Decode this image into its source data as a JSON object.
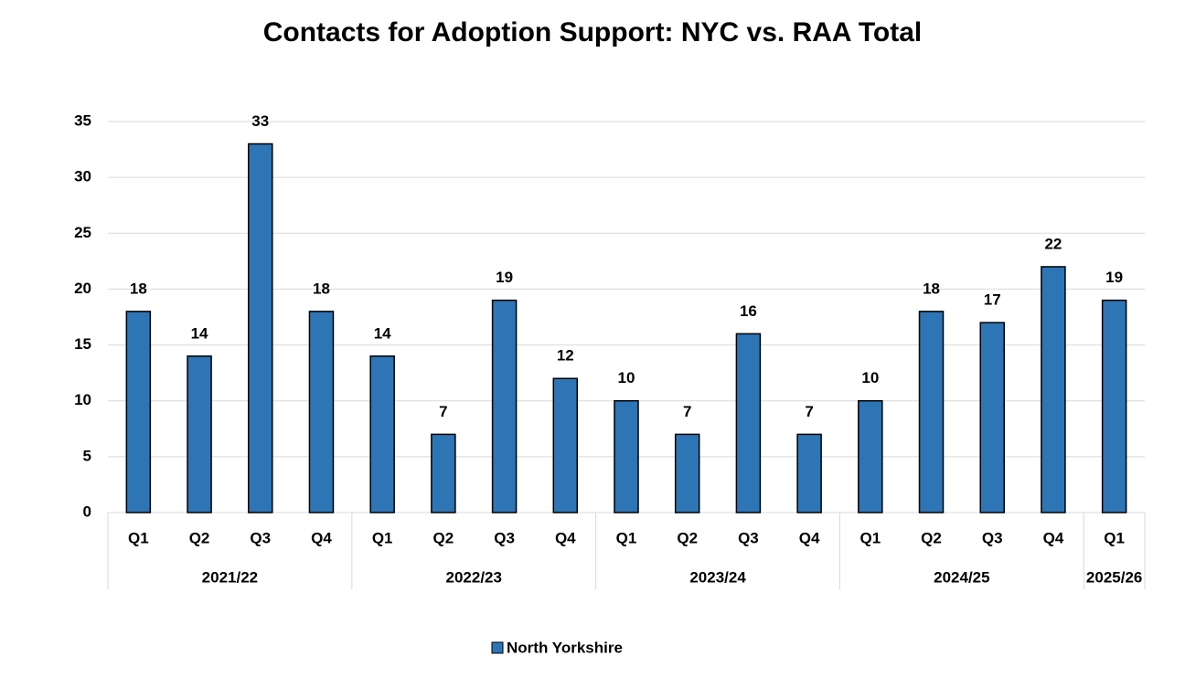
{
  "chart_data": {
    "type": "bar",
    "title": "Contacts for Adoption Support: NYC vs. RAA Total",
    "categories": [
      "Q1",
      "Q2",
      "Q3",
      "Q4",
      "Q1",
      "Q2",
      "Q3",
      "Q4",
      "Q1",
      "Q2",
      "Q3",
      "Q4",
      "Q1",
      "Q2",
      "Q3",
      "Q4",
      "Q1"
    ],
    "category_groups": [
      "2021/22",
      "2022/23",
      "2023/24",
      "2024/25",
      "2025/26"
    ],
    "series": [
      {
        "name": "North Yorkshire",
        "color": "#2e75b6",
        "values": [
          18,
          14,
          33,
          18,
          14,
          7,
          19,
          12,
          10,
          7,
          16,
          7,
          10,
          18,
          17,
          22,
          19
        ]
      }
    ],
    "ylim": [
      0,
      35
    ],
    "yticks": [
      0,
      5,
      10,
      15,
      20,
      25,
      30,
      35
    ],
    "grid": true,
    "legend": "bottom"
  }
}
